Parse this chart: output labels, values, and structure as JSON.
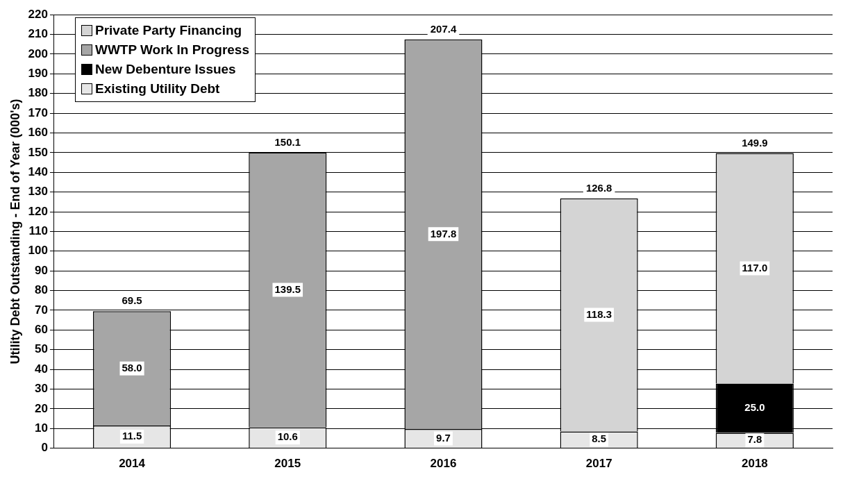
{
  "chart_data": {
    "type": "bar",
    "stacked": true,
    "ylabel": "Utility Debt Outstanding - End of Year (000's)",
    "categories": [
      "2014",
      "2015",
      "2016",
      "2017",
      "2018"
    ],
    "series": [
      {
        "name": "Existing Utility Debt",
        "color": "#e6e6e6",
        "values": [
          11.5,
          10.6,
          9.7,
          8.5,
          7.8
        ],
        "value_labels": [
          "11.5",
          "10.6",
          "9.7",
          "8.5",
          "7.8"
        ]
      },
      {
        "name": "New Debenture Issues",
        "color": "#000000",
        "values": [
          null,
          null,
          null,
          null,
          25.0
        ],
        "value_labels": [
          null,
          null,
          null,
          null,
          "25.0"
        ]
      },
      {
        "name": "WWTP Work In Progress",
        "color": "#a6a6a6",
        "values": [
          58.0,
          139.5,
          197.8,
          null,
          null
        ],
        "value_labels": [
          "58.0",
          "139.5",
          "197.8",
          null,
          null
        ]
      },
      {
        "name": "Private Party Financing",
        "color": "#d4d4d4",
        "values": [
          null,
          null,
          null,
          118.3,
          117.0
        ],
        "value_labels": [
          null,
          null,
          null,
          "118.3",
          "117.0"
        ]
      }
    ],
    "totals": [
      "69.5",
      "150.1",
      "207.4",
      "126.8",
      "149.9"
    ],
    "ylim": [
      0,
      220
    ],
    "yticks": [
      0,
      10,
      20,
      30,
      40,
      50,
      60,
      70,
      80,
      90,
      100,
      110,
      120,
      130,
      140,
      150,
      160,
      170,
      180,
      190,
      200,
      210,
      220
    ],
    "grid": "y",
    "legend": "top left"
  }
}
